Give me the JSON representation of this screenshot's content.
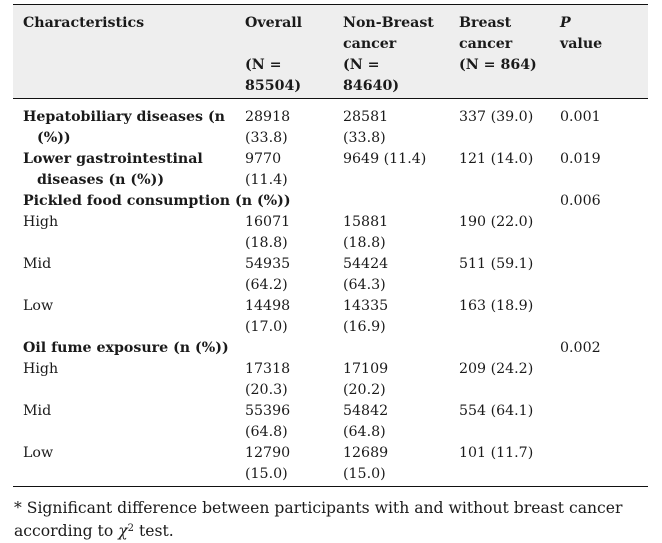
{
  "header": {
    "characteristics": "Characteristics",
    "overall": [
      "Overall",
      "",
      "(N =",
      "85504)"
    ],
    "nonbreast": [
      "Non-Breast",
      "cancer",
      "(N =",
      "84640)"
    ],
    "breast": [
      "Breast",
      "cancer",
      "(N = 864)"
    ],
    "p_label": [
      "P",
      "value"
    ]
  },
  "rows": {
    "hepato": {
      "label": [
        "Hepatobiliary diseases (n",
        "(%))"
      ],
      "overall": [
        "28918",
        "(33.8)"
      ],
      "nonbreast": [
        "28581",
        "(33.8)"
      ],
      "breast": "337 (39.0)",
      "p": "0.001"
    },
    "lowergi": {
      "label": [
        "Lower gastrointestinal",
        "diseases (n (%))"
      ],
      "overall": [
        "9770",
        "(11.4)"
      ],
      "nonbreast": "9649 (11.4)",
      "breast": "121 (14.0)",
      "p": "0.019"
    },
    "pickled": {
      "label": "Pickled food consumption (n (%))",
      "p": "0.006"
    },
    "pickled_high": {
      "label": "High",
      "overall": [
        "16071",
        "(18.8)"
      ],
      "nonbreast": [
        "15881",
        "(18.8)"
      ],
      "breast": "190 (22.0)"
    },
    "pickled_mid": {
      "label": "Mid",
      "overall": [
        "54935",
        "(64.2)"
      ],
      "nonbreast": [
        "54424",
        "(64.3)"
      ],
      "breast": "511 (59.1)"
    },
    "pickled_low": {
      "label": "Low",
      "overall": [
        "14498",
        "(17.0)"
      ],
      "nonbreast": [
        "14335",
        "(16.9)"
      ],
      "breast": "163 (18.9)"
    },
    "oil": {
      "label": "Oil fume exposure (n (%))",
      "p": "0.002"
    },
    "oil_high": {
      "label": "High",
      "overall": [
        "17318",
        "(20.3)"
      ],
      "nonbreast": [
        "17109",
        "(20.2)"
      ],
      "breast": "209 (24.2)"
    },
    "oil_mid": {
      "label": "Mid",
      "overall": [
        "55396",
        "(64.8)"
      ],
      "nonbreast": [
        "54842",
        "(64.8)"
      ],
      "breast": "554 (64.1)"
    },
    "oil_low": {
      "label": "Low",
      "overall": [
        "12790",
        "(15.0)"
      ],
      "nonbreast": [
        "12689",
        "(15.0)"
      ],
      "breast": "101 (11.7)"
    }
  },
  "footnote": {
    "marker": "*",
    "line1": "Significant difference between participants with and without breast cancer",
    "line2_prefix": "according to",
    "chi": "χ",
    "sup": "2",
    "line2_suffix": "test."
  }
}
